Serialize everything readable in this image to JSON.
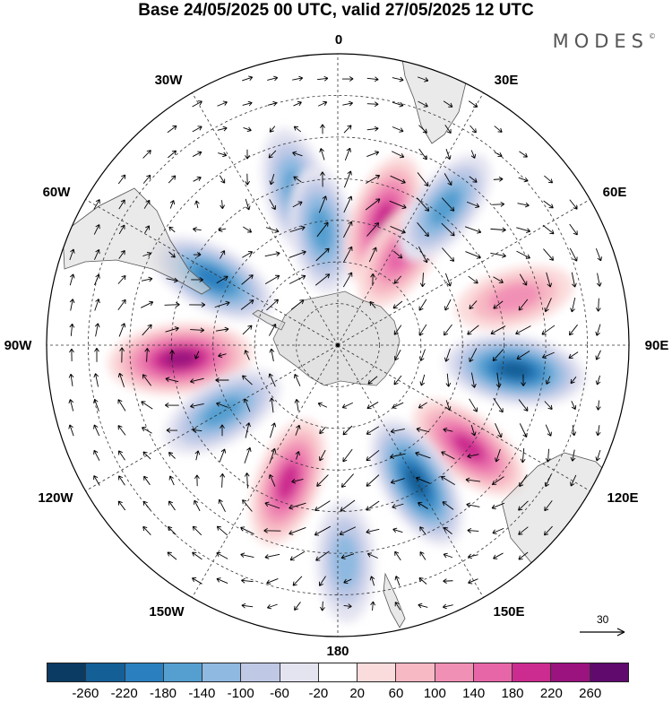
{
  "title": "Base 24/05/2025 00 UTC, valid 27/05/2025 12 UTC",
  "brand": {
    "name": "MODES",
    "mark": "©"
  },
  "projection": "south-polar-stereographic",
  "longitude_labels": {
    "lon_0": "0",
    "lon_30e": "30E",
    "lon_60e": "60E",
    "lon_90e": "90E",
    "lon_120e": "120E",
    "lon_150e": "150E",
    "lon_180": "180",
    "lon_150w": "150W",
    "lon_120w": "120W",
    "lon_90w": "90W",
    "lon_60w": "60W",
    "lon_30w": "30W"
  },
  "vector_scale": {
    "label": "30",
    "icon": "arrow-right-icon"
  },
  "colorbar": {
    "colors": [
      "#0b3b63",
      "#155f97",
      "#2a7fbf",
      "#559fd0",
      "#8fb9e0",
      "#bfc9e6",
      "#e4e4f1",
      "#ffffff",
      "#fbdcdc",
      "#f7b9c4",
      "#f190b5",
      "#e766a8",
      "#cc2b8f",
      "#9b137f",
      "#600a6e"
    ],
    "ticks": [
      "-260",
      "-220",
      "-180",
      "-140",
      "-100",
      "-60",
      "-20",
      "20",
      "60",
      "100",
      "140",
      "180",
      "220",
      "260"
    ]
  },
  "anomaly_centers": [
    {
      "lon": -95,
      "lat": -52,
      "value": 240
    },
    {
      "lon": -62,
      "lat": -56,
      "value": -150
    },
    {
      "lon": -15,
      "lat": -52,
      "value": -140
    },
    {
      "lon": -8,
      "lat": -62,
      "value": -120
    },
    {
      "lon": 20,
      "lat": -58,
      "value": 170
    },
    {
      "lon": 35,
      "lat": -63,
      "value": 110
    },
    {
      "lon": 38,
      "lat": -48,
      "value": -110
    },
    {
      "lon": 75,
      "lat": -46,
      "value": 70
    },
    {
      "lon": 98,
      "lat": -47,
      "value": -220
    },
    {
      "lon": 128,
      "lat": -50,
      "value": 150
    },
    {
      "lon": 150,
      "lat": -52,
      "value": -210
    },
    {
      "lon": -160,
      "lat": -55,
      "value": 150
    },
    {
      "lon": -120,
      "lat": -58,
      "value": -130
    },
    {
      "lon": 178,
      "lat": -38,
      "value": -80
    }
  ]
}
